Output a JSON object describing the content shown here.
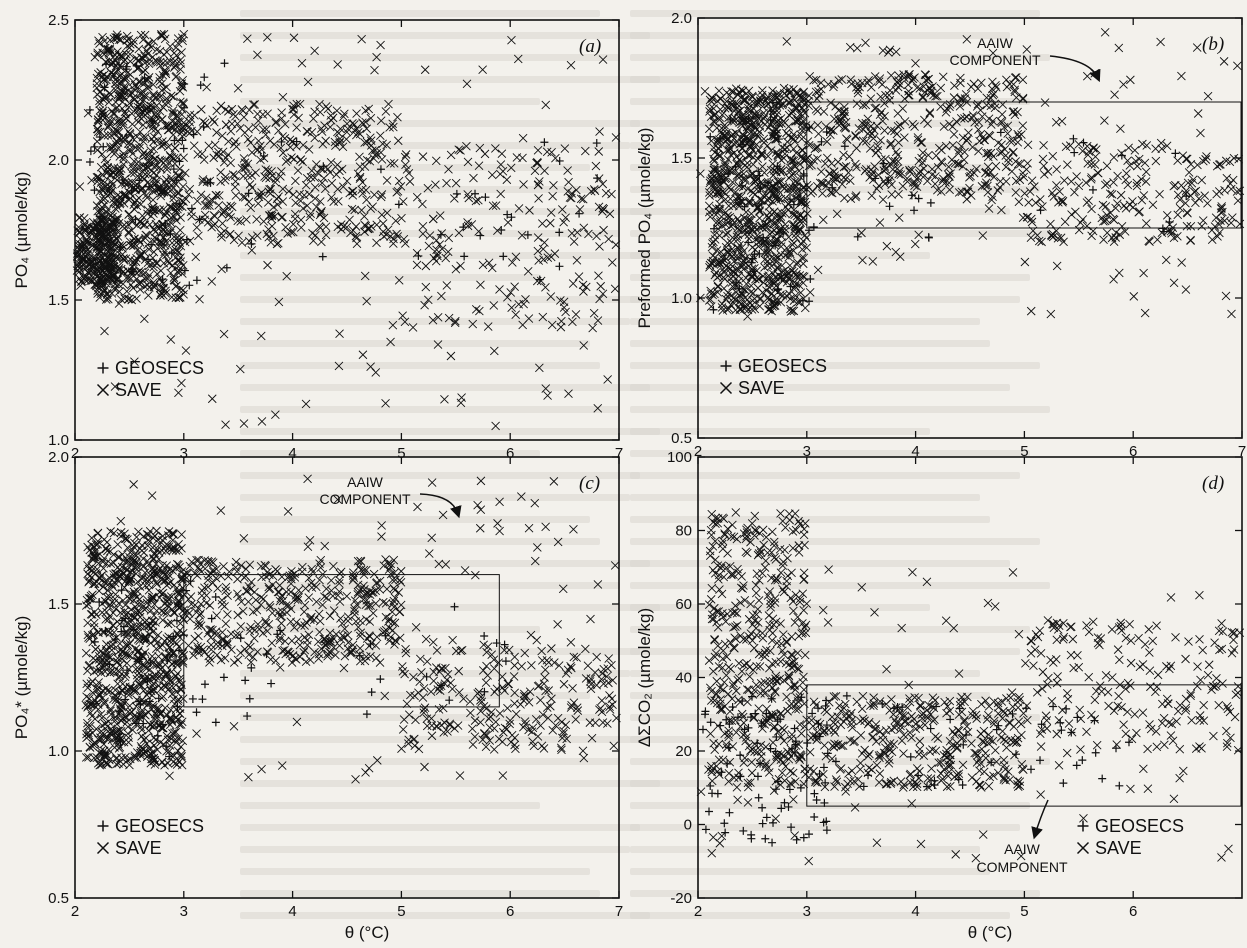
{
  "chart_data": [
    {
      "id": "a",
      "type": "scatter",
      "tag": "(a)",
      "ylabel": "PO₄ (µmole/kg)",
      "xlabel": "",
      "xlim": [
        2,
        7
      ],
      "ylim": [
        1.0,
        2.5
      ],
      "xticks": [
        "2",
        "3",
        "4",
        "5",
        "6",
        "7"
      ],
      "yticks": [
        "1.0",
        "1.5",
        "2.0",
        "2.5"
      ],
      "legend_position": "bottom-left",
      "series": [
        {
          "name": "GEOSECS",
          "marker": "plus",
          "clusters": [
            {
              "x": [
                2.1,
                3.4
              ],
              "y": [
                1.55,
                2.35
              ],
              "n": 55
            },
            {
              "x": [
                3.4,
                6.8
              ],
              "y": [
                1.5,
                2.1
              ],
              "n": 30
            }
          ]
        },
        {
          "name": "SAVE",
          "marker": "cross",
          "clusters": [
            {
              "x": [
                2.2,
                3.0
              ],
              "y": [
                1.5,
                2.45
              ],
              "n": 900
            },
            {
              "x": [
                2.0,
                2.4
              ],
              "y": [
                1.55,
                1.8
              ],
              "n": 250
            },
            {
              "x": [
                3.0,
                5.0
              ],
              "y": [
                1.7,
                2.2
              ],
              "n": 420
            },
            {
              "x": [
                5.0,
                7.0
              ],
              "y": [
                1.4,
                2.05
              ],
              "n": 180
            },
            {
              "x": [
                2.0,
                7.0
              ],
              "y": [
                1.05,
                2.45
              ],
              "n": 150
            }
          ]
        }
      ],
      "annotation": null
    },
    {
      "id": "b",
      "type": "scatter",
      "tag": "(b)",
      "ylabel": "Preformed PO₄ (µmole/kg)",
      "xlabel": "",
      "xlim": [
        2,
        7
      ],
      "ylim": [
        0.5,
        2.0
      ],
      "xticks": [
        "2",
        "3",
        "4",
        "5",
        "6",
        "7"
      ],
      "yticks": [
        "0.5",
        "1.0",
        "1.5",
        "2.0"
      ],
      "legend_position": "bottom-left",
      "series": [
        {
          "name": "GEOSECS",
          "marker": "plus",
          "clusters": [
            {
              "x": [
                2.1,
                3.2
              ],
              "y": [
                0.95,
                1.7
              ],
              "n": 50
            },
            {
              "x": [
                3.2,
                6.5
              ],
              "y": [
                1.2,
                1.6
              ],
              "n": 25
            }
          ]
        },
        {
          "name": "SAVE",
          "marker": "cross",
          "clusters": [
            {
              "x": [
                2.1,
                3.0
              ],
              "y": [
                0.95,
                1.75
              ],
              "n": 900
            },
            {
              "x": [
                3.0,
                5.0
              ],
              "y": [
                1.35,
                1.8
              ],
              "n": 450
            },
            {
              "x": [
                5.0,
                7.0
              ],
              "y": [
                1.2,
                1.55
              ],
              "n": 220
            },
            {
              "x": [
                2.0,
                7.0
              ],
              "y": [
                0.9,
                1.95
              ],
              "n": 120
            }
          ]
        }
      ],
      "annotation": {
        "label_line1": "AAIW",
        "label_line2": "COMPONENT",
        "box_x": [
          3.0,
          7.0
        ],
        "box_y": [
          1.25,
          1.7
        ]
      }
    },
    {
      "id": "c",
      "type": "scatter",
      "tag": "(c)",
      "ylabel": "PO₄* (µmole/kg)",
      "xlabel": "θ (°C)",
      "xlim": [
        2,
        7
      ],
      "ylim": [
        0.5,
        2.0
      ],
      "xticks": [
        "2",
        "3",
        "4",
        "5",
        "6",
        "7"
      ],
      "yticks": [
        "0.5",
        "1.0",
        "1.5",
        "2.0"
      ],
      "legend_position": "bottom-left",
      "series": [
        {
          "name": "GEOSECS",
          "marker": "plus",
          "clusters": [
            {
              "x": [
                2.1,
                3.3
              ],
              "y": [
                0.95,
                1.6
              ],
              "n": 45
            },
            {
              "x": [
                3.3,
                6.0
              ],
              "y": [
                1.1,
                1.5
              ],
              "n": 25
            }
          ]
        },
        {
          "name": "SAVE",
          "marker": "cross",
          "clusters": [
            {
              "x": [
                2.1,
                3.0
              ],
              "y": [
                0.95,
                1.75
              ],
              "n": 900
            },
            {
              "x": [
                3.0,
                5.0
              ],
              "y": [
                1.3,
                1.65
              ],
              "n": 420
            },
            {
              "x": [
                5.0,
                7.0
              ],
              "y": [
                1.0,
                1.35
              ],
              "n": 230
            },
            {
              "x": [
                2.0,
                7.0
              ],
              "y": [
                0.9,
                1.95
              ],
              "n": 110
            }
          ]
        }
      ],
      "annotation": {
        "label_line1": "AAIW",
        "label_line2": "COMPONENT",
        "box_x": [
          3.0,
          5.9
        ],
        "box_y": [
          1.15,
          1.6
        ]
      }
    },
    {
      "id": "d",
      "type": "scatter",
      "tag": "(d)",
      "ylabel": "ΔΣCO₂ (µmole/kg)",
      "xlabel": "θ (°C)",
      "xlim": [
        2,
        7
      ],
      "ylim": [
        -20,
        100
      ],
      "xticks": [
        "2",
        "3",
        "4",
        "5",
        "6"
      ],
      "yticks": [
        "-20",
        "0",
        "20",
        "40",
        "60",
        "80",
        "100"
      ],
      "legend_position": "bottom-right",
      "series": [
        {
          "name": "GEOSECS",
          "marker": "plus",
          "clusters": [
            {
              "x": [
                2.0,
                3.2
              ],
              "y": [
                -5,
                35
              ],
              "n": 90
            },
            {
              "x": [
                3.2,
                6.0
              ],
              "y": [
                10,
                35
              ],
              "n": 45
            }
          ]
        },
        {
          "name": "SAVE",
          "marker": "cross",
          "clusters": [
            {
              "x": [
                2.1,
                3.0
              ],
              "y": [
                10,
                85
              ],
              "n": 450
            },
            {
              "x": [
                3.0,
                5.0
              ],
              "y": [
                10,
                35
              ],
              "n": 350
            },
            {
              "x": [
                5.0,
                7.0
              ],
              "y": [
                20,
                55
              ],
              "n": 180
            },
            {
              "x": [
                2.0,
                7.0
              ],
              "y": [
                -10,
                70
              ],
              "n": 90
            }
          ]
        }
      ],
      "annotation": {
        "label_line1": "AAIW",
        "label_line2": "COMPONENT",
        "box_x": [
          3.0,
          7.0
        ],
        "box_y": [
          5,
          38
        ]
      }
    }
  ]
}
